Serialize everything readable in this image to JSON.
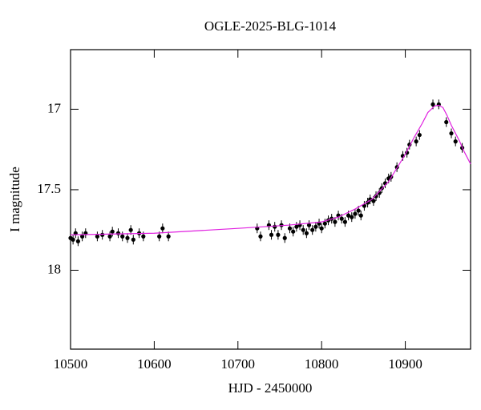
{
  "chart_data": {
    "type": "scatter",
    "title": "OGLE-2025-BLG-1014",
    "xlabel": "HJD - 2450000",
    "ylabel": "I magnitude",
    "xlim": [
      10500,
      10978
    ],
    "ylim": [
      18.49,
      16.63
    ],
    "xticks": [
      10500,
      10600,
      10700,
      10800,
      10900
    ],
    "yticks": [
      17,
      17.5,
      18
    ],
    "series": [
      {
        "color": "#000000",
        "x": [
          10500,
          10503,
          10506,
          10509,
          10514,
          10518,
          10532,
          10538,
          10547,
          10550,
          10557,
          10562,
          10568,
          10572,
          10575,
          10582,
          10587,
          10606,
          10610,
          10617,
          10723,
          10727,
          10737,
          10740,
          10744,
          10748,
          10752,
          10756,
          10762,
          10766,
          10770,
          10774,
          10778,
          10782,
          10785,
          10789,
          10793,
          10797,
          10800,
          10804,
          10808,
          10812,
          10816,
          10820,
          10824,
          10828,
          10832,
          10836,
          10840,
          10844,
          10847,
          10851,
          10855,
          10858,
          10862,
          10865,
          10869,
          10872,
          10876,
          10880,
          10883,
          10890,
          10897,
          10902,
          10905,
          10913,
          10917,
          10933,
          10940,
          10949,
          10955,
          10960,
          10968
        ],
        "values": [
          17.8,
          17.81,
          17.77,
          17.82,
          17.79,
          17.77,
          17.79,
          17.78,
          17.79,
          17.76,
          17.77,
          17.79,
          17.8,
          17.75,
          17.81,
          17.77,
          17.79,
          17.79,
          17.74,
          17.79,
          17.74,
          17.79,
          17.72,
          17.78,
          17.73,
          17.78,
          17.72,
          17.8,
          17.74,
          17.76,
          17.73,
          17.72,
          17.75,
          17.77,
          17.72,
          17.75,
          17.73,
          17.71,
          17.74,
          17.71,
          17.69,
          17.68,
          17.7,
          17.66,
          17.68,
          17.7,
          17.66,
          17.67,
          17.65,
          17.63,
          17.66,
          17.6,
          17.58,
          17.56,
          17.57,
          17.54,
          17.52,
          17.49,
          17.46,
          17.43,
          17.42,
          17.36,
          17.29,
          17.27,
          17.22,
          17.2,
          17.16,
          16.97,
          16.97,
          17.08,
          17.15,
          17.2,
          17.24
        ],
        "errors": [
          0.03,
          0.03,
          0.03,
          0.03,
          0.03,
          0.03,
          0.03,
          0.03,
          0.03,
          0.03,
          0.03,
          0.03,
          0.03,
          0.03,
          0.03,
          0.03,
          0.03,
          0.03,
          0.03,
          0.03,
          0.03,
          0.03,
          0.03,
          0.03,
          0.03,
          0.03,
          0.03,
          0.03,
          0.03,
          0.03,
          0.03,
          0.03,
          0.03,
          0.03,
          0.03,
          0.03,
          0.03,
          0.03,
          0.03,
          0.03,
          0.03,
          0.03,
          0.03,
          0.03,
          0.03,
          0.03,
          0.03,
          0.03,
          0.03,
          0.03,
          0.03,
          0.03,
          0.03,
          0.03,
          0.03,
          0.03,
          0.03,
          0.03,
          0.03,
          0.03,
          0.03,
          0.03,
          0.03,
          0.03,
          0.03,
          0.03,
          0.03,
          0.03,
          0.03,
          0.03,
          0.03,
          0.03,
          0.03
        ]
      },
      {
        "color": "#e020e0",
        "x": [
          10500,
          10600,
          10700,
          10760,
          10800,
          10820,
          10840,
          10860,
          10880,
          10900,
          10910,
          10920,
          10927,
          10935,
          10940,
          10945,
          10950,
          10955,
          10960,
          10965,
          10970,
          10978
        ],
        "values": [
          17.78,
          17.77,
          17.74,
          17.72,
          17.7,
          17.67,
          17.62,
          17.56,
          17.45,
          17.28,
          17.18,
          17.09,
          17.02,
          16.98,
          16.975,
          16.99,
          17.04,
          17.1,
          17.15,
          17.2,
          17.26,
          17.34
        ]
      }
    ]
  }
}
